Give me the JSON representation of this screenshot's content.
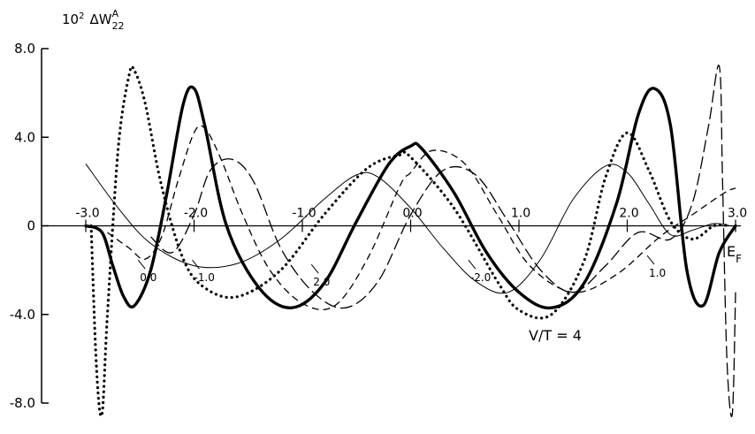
{
  "chart_data": {
    "type": "line",
    "ylabel": {
      "prefix": "10",
      "exp": "2",
      "quantity": "ΔW",
      "sub": "22",
      "sup": "A"
    },
    "xlabel": {
      "main": "E",
      "sub": "F"
    },
    "annotation": "V/T = 4",
    "xlim": [
      -3.0,
      3.0
    ],
    "ylim": [
      -8.0,
      8.0
    ],
    "yticks": [
      -8.0,
      -4.0,
      0,
      4.0,
      8.0
    ],
    "ytick_labels": [
      "-8.0",
      "-4.0",
      "0",
      "4.0",
      "8.0"
    ],
    "xticks": [
      -3.0,
      -2.0,
      -1.0,
      0.0,
      1.0,
      2.0,
      3.0
    ],
    "xtick_labels": [
      "-3.0",
      "-2.0",
      "-1.0",
      "0.0",
      "1.0",
      "2.0",
      "3.0"
    ],
    "grid": false,
    "curve_labels": [
      {
        "text": "0.0",
        "x": -2.5,
        "y": -2.1
      },
      {
        "text": "-1.0",
        "x": -2.0,
        "y": -2.1
      },
      {
        "text": "2.0",
        "x": -0.9,
        "y": -2.3
      },
      {
        "text": "-2.0",
        "x": 0.55,
        "y": -2.1
      },
      {
        "text": "1.0",
        "x": 2.2,
        "y": -1.9
      }
    ],
    "series": [
      {
        "label": "0.0",
        "style": "thin-solid",
        "x": [
          -3.0,
          -2.7,
          -2.4,
          -2.0,
          -1.6,
          -1.2,
          -0.8,
          -0.5,
          -0.3,
          0.0,
          0.3,
          0.6,
          0.9,
          1.2,
          1.5,
          1.8,
          2.0,
          2.2,
          2.4,
          2.6,
          2.8,
          2.95
        ],
        "y": [
          2.8,
          0.8,
          -0.8,
          -1.8,
          -1.7,
          -0.6,
          1.2,
          2.3,
          2.2,
          0.8,
          -1.0,
          -2.5,
          -3.0,
          -1.5,
          1.2,
          2.7,
          2.4,
          1.0,
          -0.4,
          -0.2,
          0.1,
          0.0
        ]
      },
      {
        "label": "-1.0",
        "style": "dotted",
        "x": [
          -2.95,
          -2.9,
          -2.85,
          -2.8,
          -2.7,
          -2.6,
          -2.55,
          -2.45,
          -2.3,
          -2.1,
          -1.9,
          -1.6,
          -1.2,
          -0.8,
          -0.4,
          -0.1,
          0.0,
          0.4,
          0.8,
          1.0,
          1.3,
          1.6,
          1.8,
          2.0,
          2.2,
          2.4,
          2.6,
          2.8,
          2.95
        ],
        "y": [
          0.0,
          -6.5,
          -8.5,
          -4.0,
          3.5,
          6.8,
          7.0,
          5.5,
          1.8,
          -1.5,
          -2.8,
          -3.2,
          -2.0,
          0.5,
          2.6,
          3.2,
          3.1,
          0.8,
          -2.5,
          -3.8,
          -4.0,
          -1.6,
          2.2,
          4.2,
          2.5,
          0.2,
          -0.6,
          0.0,
          0.0
        ]
      },
      {
        "label": "V/T=4",
        "style": "thick-solid",
        "x": [
          -3.0,
          -2.85,
          -2.75,
          -2.65,
          -2.55,
          -2.4,
          -2.25,
          -2.1,
          -2.0,
          -1.9,
          -1.7,
          -1.4,
          -1.1,
          -0.8,
          -0.5,
          -0.2,
          0.0,
          0.1,
          0.4,
          0.7,
          1.0,
          1.3,
          1.6,
          1.9,
          2.1,
          2.25,
          2.4,
          2.55,
          2.7,
          2.85,
          3.0
        ],
        "y": [
          0.0,
          -0.3,
          -1.8,
          -3.2,
          -3.6,
          -2.0,
          1.5,
          5.5,
          6.2,
          4.5,
          0.0,
          -2.8,
          -3.7,
          -2.6,
          0.2,
          2.8,
          3.6,
          3.5,
          1.5,
          -1.2,
          -3.0,
          -3.7,
          -2.6,
          1.0,
          5.0,
          6.2,
          4.5,
          -2.0,
          -3.6,
          -1.2,
          0.0
        ]
      },
      {
        "label": "2.0",
        "style": "dashed",
        "x": [
          -2.8,
          -2.6,
          -2.45,
          -2.3,
          -2.15,
          -2.0,
          -1.9,
          -1.75,
          -1.55,
          -1.3,
          -1.0,
          -0.7,
          -0.4,
          -0.1,
          0.0,
          0.2,
          0.5,
          0.8,
          1.1,
          1.5,
          1.9,
          2.3,
          2.6,
          2.9,
          3.0
        ],
        "y": [
          -0.3,
          -1.0,
          -1.5,
          -0.5,
          2.0,
          4.2,
          4.4,
          3.0,
          0.5,
          -2.0,
          -3.5,
          -3.6,
          -1.5,
          1.8,
          2.4,
          3.4,
          2.8,
          0.5,
          -1.8,
          -3.0,
          -2.2,
          -0.5,
          0.5,
          1.5,
          1.7
        ]
      },
      {
        "label": "-2.0",
        "style": "long-dash",
        "x": [
          -2.4,
          -2.2,
          -2.0,
          -1.85,
          -1.65,
          -1.45,
          -1.2,
          -0.9,
          -0.6,
          -0.3,
          0.0,
          0.3,
          0.6,
          0.9,
          1.2,
          1.5,
          1.8,
          2.1,
          2.4,
          2.6,
          2.75,
          2.85,
          2.88,
          2.92,
          2.97,
          3.0
        ],
        "y": [
          -0.5,
          -1.2,
          0.5,
          2.5,
          3.0,
          2.0,
          -1.0,
          -3.0,
          -3.7,
          -2.5,
          0.5,
          2.5,
          2.3,
          0.2,
          -2.0,
          -3.0,
          -1.8,
          -0.3,
          -0.6,
          1.0,
          4.5,
          7.2,
          2.0,
          -6.0,
          -8.5,
          -3.0
        ]
      }
    ]
  }
}
